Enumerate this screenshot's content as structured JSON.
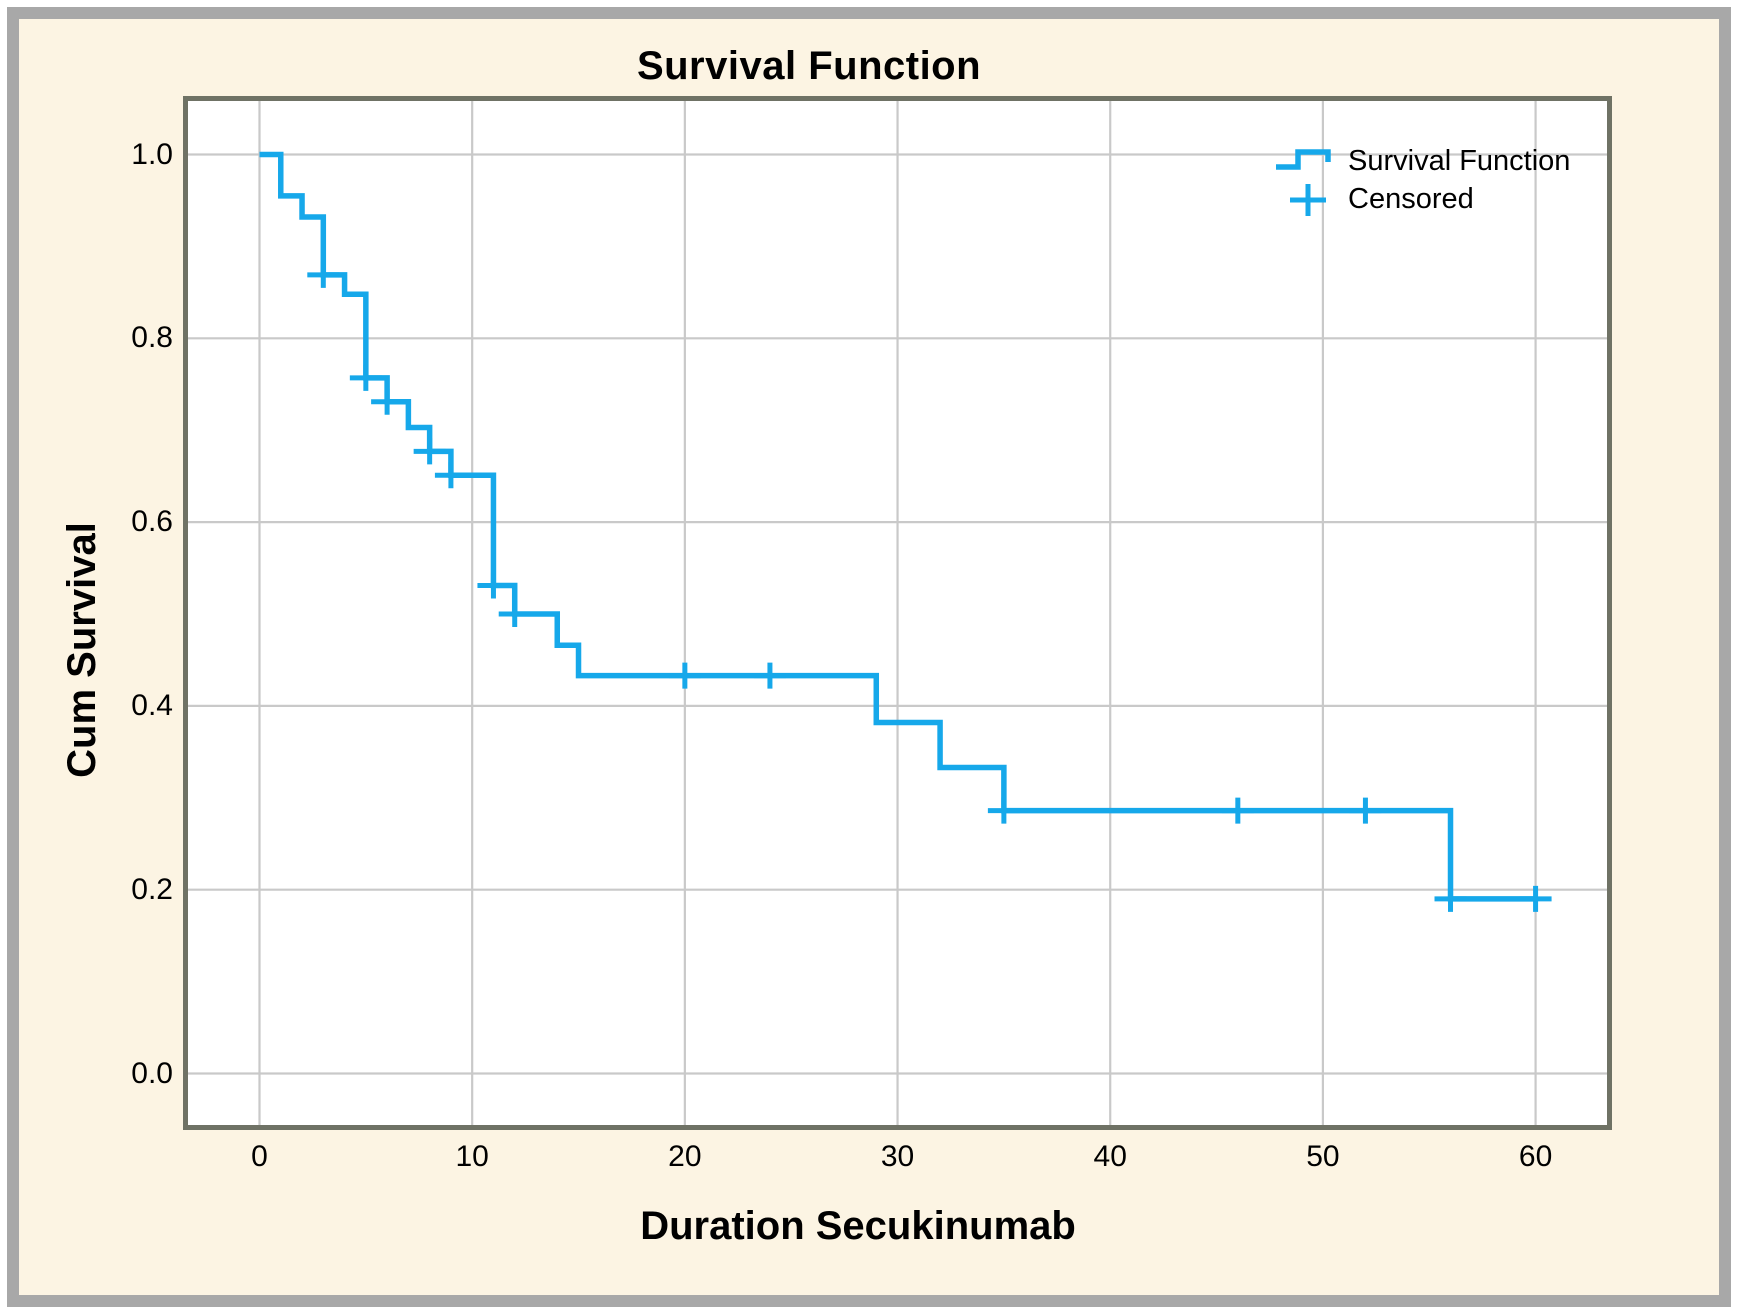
{
  "window": {
    "outer_margin_color": "#ffffff",
    "frame_color": "#a8a8a8",
    "canvas_color": "#fcf4e3"
  },
  "colors": {
    "curve": "#16a8ea",
    "grid": "#c9c9c9",
    "plot_border": "#6f7265",
    "plot_background": "#ffffff",
    "text": "#000000"
  },
  "chart": {
    "title": "Survival Function",
    "x_axis": {
      "title": "Duration Secukinumab",
      "tick_labels": [
        "0",
        "10",
        "20",
        "30",
        "40",
        "50",
        "60"
      ],
      "tick_values": [
        0,
        10,
        20,
        30,
        40,
        50,
        60
      ]
    },
    "y_axis": {
      "title": "Cum Survival",
      "tick_labels": [
        "0.0",
        "0.2",
        "0.4",
        "0.6",
        "0.8",
        "1.0"
      ],
      "tick_values": [
        0,
        0.2,
        0.4,
        0.6,
        0.8,
        1.0
      ]
    },
    "legend": {
      "items": [
        {
          "label": "Survival Function",
          "symbol": "step-line-icon"
        },
        {
          "label": "Censored",
          "symbol": "plus-marker-icon"
        }
      ]
    }
  },
  "chart_data": {
    "type": "line",
    "subtype": "kaplan-meier-step",
    "title": "Survival Function",
    "xlabel": "Duration Secukinumab",
    "ylabel": "Cum Survival",
    "xlim": [
      0,
      60
    ],
    "ylim": [
      0.0,
      1.0
    ],
    "grid": "on",
    "legend_position": "top-right-inside",
    "series": [
      {
        "name": "Survival Function",
        "step_points": [
          [
            0,
            1.0
          ],
          [
            1,
            0.955
          ],
          [
            2,
            0.932
          ],
          [
            3,
            0.869
          ],
          [
            4,
            0.848
          ],
          [
            5,
            0.757
          ],
          [
            6,
            0.731
          ],
          [
            7,
            0.703
          ],
          [
            8,
            0.677
          ],
          [
            9,
            0.651
          ],
          [
            11,
            0.531
          ],
          [
            12,
            0.5
          ],
          [
            14,
            0.466
          ],
          [
            15,
            0.433
          ],
          [
            29,
            0.382
          ],
          [
            32,
            0.333
          ],
          [
            35,
            0.286
          ],
          [
            56,
            0.19
          ]
        ],
        "end_x": 60
      }
    ],
    "censored_points": [
      [
        3,
        0.869
      ],
      [
        5,
        0.757
      ],
      [
        6,
        0.731
      ],
      [
        8,
        0.677
      ],
      [
        9,
        0.651
      ],
      [
        11,
        0.531
      ],
      [
        12,
        0.5
      ],
      [
        20,
        0.433
      ],
      [
        24,
        0.433
      ],
      [
        35,
        0.286
      ],
      [
        46,
        0.286
      ],
      [
        52,
        0.286
      ],
      [
        56,
        0.19
      ],
      [
        60,
        0.19
      ]
    ]
  }
}
